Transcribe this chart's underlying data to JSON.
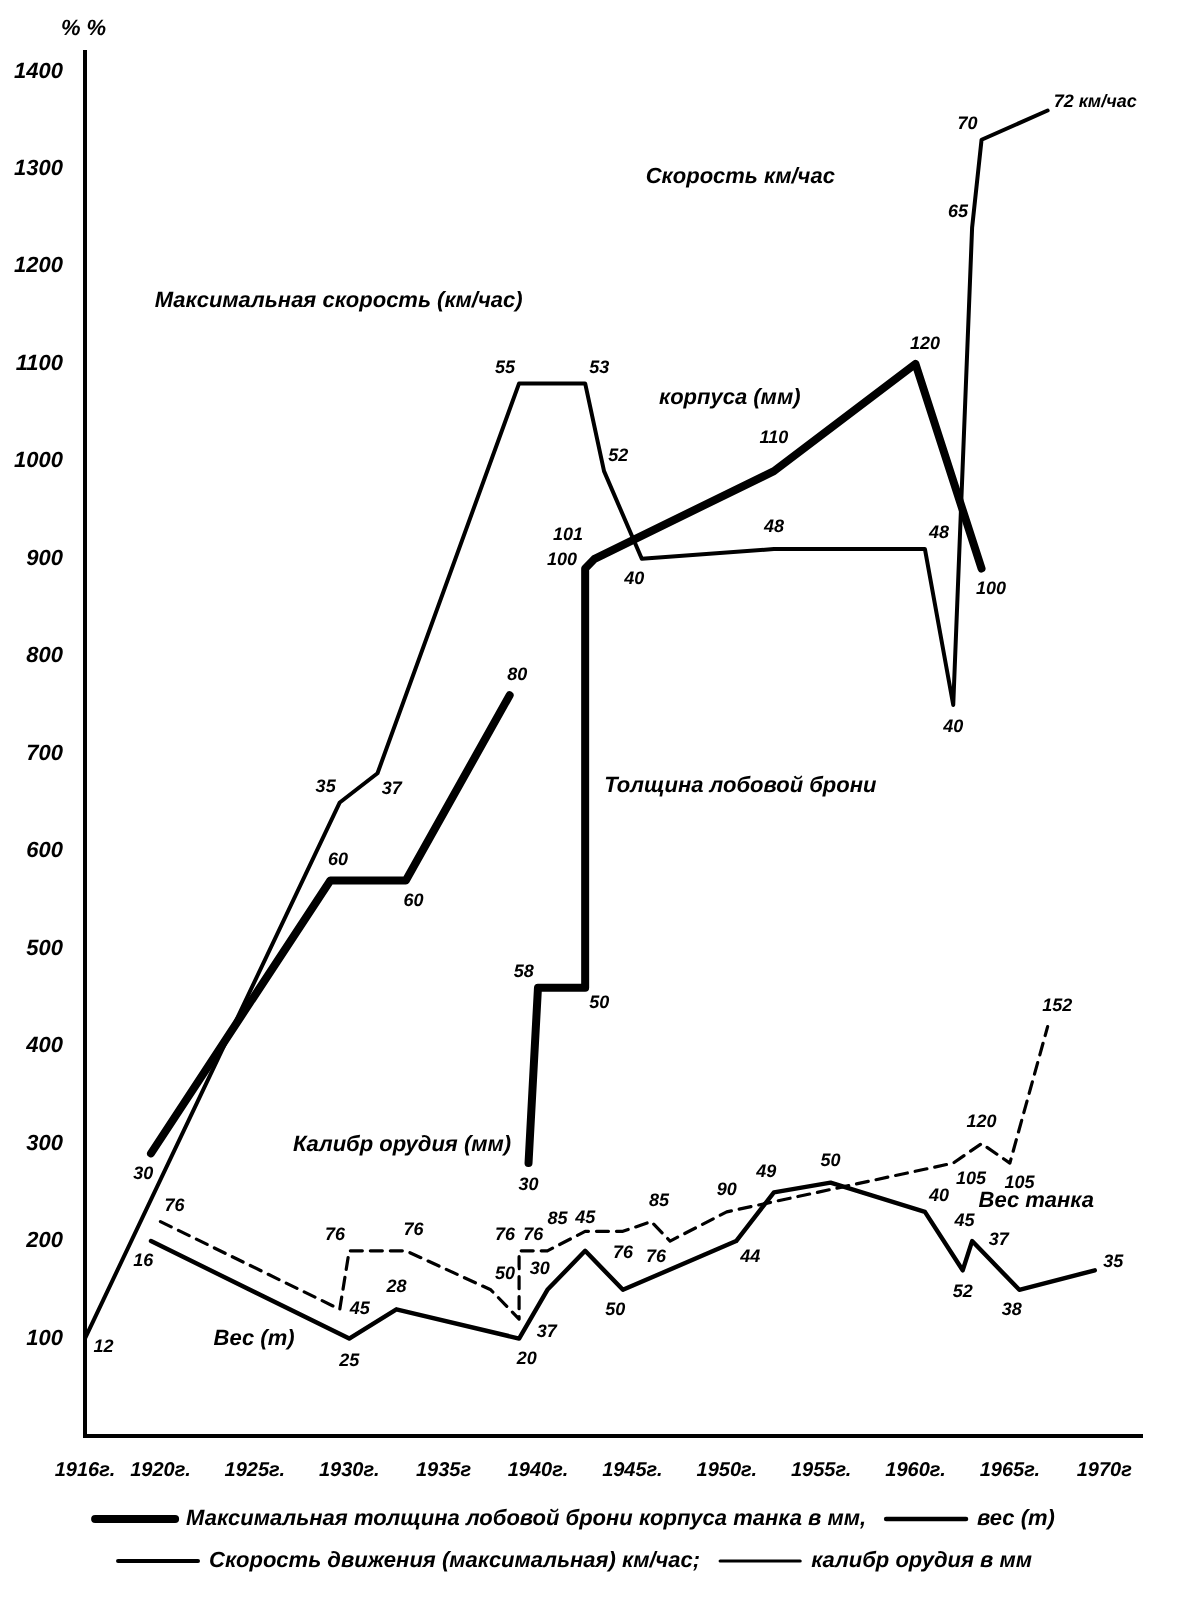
{
  "chart_data": {
    "type": "line",
    "ylabel": "% %",
    "grid": false,
    "legend": "bottom",
    "marker": "none",
    "xlim": [
      1916,
      1972
    ],
    "xticks": [
      {
        "value": 1916,
        "label": "1916г."
      },
      {
        "value": 1920,
        "label": "1920г."
      },
      {
        "value": 1925,
        "label": "1925г."
      },
      {
        "value": 1930,
        "label": "1930г."
      },
      {
        "value": 1935,
        "label": "1935г"
      },
      {
        "value": 1940,
        "label": "1940г."
      },
      {
        "value": 1945,
        "label": "1945г."
      },
      {
        "value": 1950,
        "label": "1950г."
      },
      {
        "value": 1955,
        "label": "1955г."
      },
      {
        "value": 1960,
        "label": "1960г."
      },
      {
        "value": 1965,
        "label": "1965г."
      },
      {
        "value": 1970,
        "label": "1970г"
      }
    ],
    "ylim": [
      0,
      1420
    ],
    "yticks": [
      100,
      200,
      300,
      400,
      500,
      600,
      700,
      800,
      900,
      1000,
      1100,
      1200,
      1300,
      1400
    ],
    "series": [
      {
        "name": "Максимальная толщина лобовой брони корпуса танка в мм,",
        "color": "#000000",
        "line_style": "solid",
        "x": [
          1919.5,
          1929,
          1933,
          1938.5,
          1939,
          1939.5,
          1940,
          1942.5,
          1942.5,
          1943,
          1952.5,
          1960,
          1963.5
        ],
        "values": [
          290,
          570,
          570,
          760,
          null,
          280,
          460,
          460,
          890,
          900,
          990,
          1100,
          890
        ]
      },
      {
        "name": "вес (т)",
        "color": "#000000",
        "line_style": "solid",
        "x": [
          1919.5,
          1930,
          1932.5,
          1939,
          1940.5,
          1942.5,
          1944.5,
          1950.5,
          1952.5,
          1955.5,
          1960.5,
          1962.5,
          1963,
          1964,
          1965.5,
          1969.5
        ],
        "values": [
          200,
          100,
          130,
          100,
          150,
          190,
          150,
          200,
          250,
          260,
          230,
          170,
          200,
          180,
          150,
          170
        ]
      },
      {
        "name": "Скорость движения (максимальная) км/час;",
        "color": "#000000",
        "line_style": "solid",
        "x": [
          1916,
          1929.5,
          1931.5,
          1939,
          1942.5,
          1943.5,
          1945.5,
          1952.5,
          1960.5,
          1962,
          1963,
          1963.5,
          1967
        ],
        "values": [
          100,
          650,
          680,
          1080,
          1080,
          990,
          900,
          910,
          910,
          750,
          1240,
          1330,
          1360
        ]
      },
      {
        "name": "калибр орудия в мм",
        "color": "#000000",
        "line_style": "dashed",
        "x": [
          1920,
          1929.5,
          1930,
          1933,
          1937.5,
          1939,
          1939,
          1940.5,
          1942.5,
          1944.5,
          1946,
          1947,
          1950,
          1962,
          1963.5,
          1965,
          1967
        ],
        "values": [
          220,
          130,
          190,
          190,
          150,
          120,
          190,
          190,
          210,
          210,
          220,
          200,
          230,
          280,
          300,
          280,
          420
        ]
      }
    ],
    "annotations": [
      "Максимальная скорость (км/час)",
      "Толщина лобовой брони",
      "корпуса (мм)",
      "Скорость км/час",
      "Калибр орудия (мм)",
      "Вес (т)",
      "Вес танка",
      {
        "text": "30",
        "x": 1919.5,
        "y": 290
      },
      {
        "text": "60",
        "x": 1929,
        "y": 570
      },
      {
        "text": "60",
        "x": 1933,
        "y": 570
      },
      {
        "text": "80",
        "x": 1938.5,
        "y": 760
      },
      {
        "text": "30",
        "x": 1939.5,
        "y": 280
      },
      {
        "text": "58",
        "x": 1940,
        "y": 460
      },
      {
        "text": "50",
        "x": 1942.5,
        "y": 460
      },
      {
        "text": "100",
        "x": 1942.5,
        "y": 890
      },
      {
        "text": "101",
        "x": 1943,
        "y": 900
      },
      {
        "text": "110",
        "x": 1952.5,
        "y": 990
      },
      {
        "text": "120",
        "x": 1960,
        "y": 1100
      },
      {
        "text": "100",
        "x": 1963.5,
        "y": 890
      },
      {
        "text": "16",
        "x": 1919.5,
        "y": 200
      },
      {
        "text": "25",
        "x": 1930,
        "y": 100
      },
      {
        "text": "28",
        "x": 1932.5,
        "y": 130
      },
      {
        "text": "20",
        "x": 1939,
        "y": 100
      },
      {
        "text": "30",
        "x": 1940.5,
        "y": 150
      },
      {
        "text": "45",
        "x": 1942.5,
        "y": 190
      },
      {
        "text": "50",
        "x": 1944.5,
        "y": 150
      },
      {
        "text": "44",
        "x": 1950.5,
        "y": 200
      },
      {
        "text": "49",
        "x": 1952.5,
        "y": 250
      },
      {
        "text": "50",
        "x": 1955.5,
        "y": 260
      },
      {
        "text": "40",
        "x": 1960.5,
        "y": 230
      },
      {
        "text": "52",
        "x": 1962.5,
        "y": 170
      },
      {
        "text": "45",
        "x": 1963,
        "y": 200
      },
      {
        "text": "37",
        "x": 1964,
        "y": 180
      },
      {
        "text": "38",
        "x": 1965.5,
        "y": 150
      },
      {
        "text": "35",
        "x": 1969.5,
        "y": 170
      },
      {
        "text": "12",
        "x": 1916,
        "y": 100
      },
      {
        "text": "35",
        "x": 1929.5,
        "y": 650
      },
      {
        "text": "37",
        "x": 1931.5,
        "y": 680
      },
      {
        "text": "55",
        "x": 1939,
        "y": 1080
      },
      {
        "text": "53",
        "x": 1942.5,
        "y": 1080
      },
      {
        "text": "52",
        "x": 1943.5,
        "y": 990
      },
      {
        "text": "40",
        "x": 1945.5,
        "y": 900
      },
      {
        "text": "48",
        "x": 1952.5,
        "y": 910
      },
      {
        "text": "48",
        "x": 1960.5,
        "y": 910
      },
      {
        "text": "40",
        "x": 1962,
        "y": 750
      },
      {
        "text": "65",
        "x": 1963,
        "y": 1240
      },
      {
        "text": "70",
        "x": 1963.5,
        "y": 1330
      },
      {
        "text": "72 км/час",
        "x": 1967,
        "y": 1360
      },
      {
        "text": "76",
        "x": 1920,
        "y": 220
      },
      {
        "text": "45",
        "x": 1929.5,
        "y": 130
      },
      {
        "text": "76",
        "x": 1930,
        "y": 190
      },
      {
        "text": "76",
        "x": 1933,
        "y": 190
      },
      {
        "text": "50",
        "x": 1937.5,
        "y": 150
      },
      {
        "text": "37",
        "x": 1939,
        "y": 120
      },
      {
        "text": "76",
        "x": 1939,
        "y": 190
      },
      {
        "text": "76",
        "x": 1940.5,
        "y": 190
      },
      {
        "text": "85",
        "x": 1942.5,
        "y": 210
      },
      {
        "text": "76",
        "x": 1944.5,
        "y": 210
      },
      {
        "text": "85",
        "x": 1946,
        "y": 220
      },
      {
        "text": "76",
        "x": 1947,
        "y": 200
      },
      {
        "text": "90",
        "x": 1950,
        "y": 230
      },
      {
        "text": "105",
        "x": 1962,
        "y": 280
      },
      {
        "text": "120",
        "x": 1963.5,
        "y": 300
      },
      {
        "text": "105",
        "x": 1965,
        "y": 280
      },
      {
        "text": "152",
        "x": 1967,
        "y": 420
      }
    ]
  }
}
